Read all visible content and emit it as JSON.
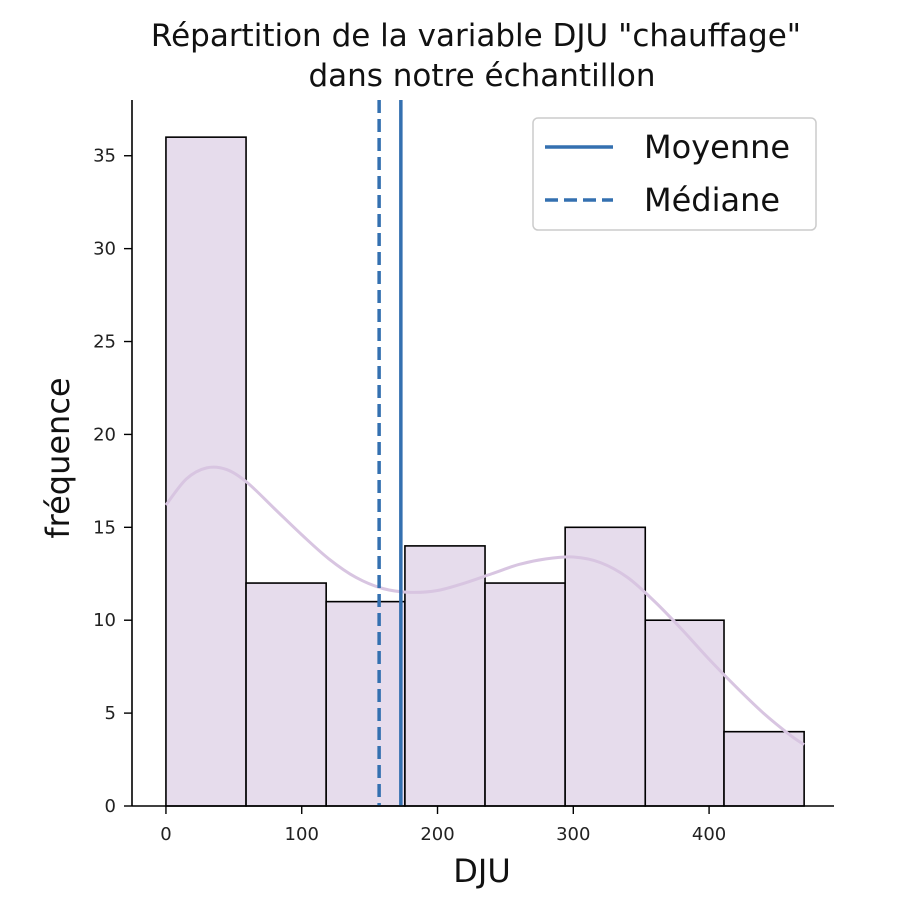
{
  "chart_data": {
    "type": "bar",
    "title_lines": [
      "Répartition de la variable DJU \"chauffage\"",
      "dans notre échantillon"
    ],
    "xlabel": "DJU",
    "ylabel": "fréquence",
    "xlim": [
      -25,
      492
    ],
    "ylim": [
      0,
      38
    ],
    "xticks": [
      0,
      100,
      200,
      300,
      400
    ],
    "yticks": [
      0,
      5,
      10,
      15,
      20,
      25,
      30,
      35
    ],
    "bins": [
      {
        "x0": 0,
        "x1": 59,
        "count": 36
      },
      {
        "x0": 59,
        "x1": 118,
        "count": 12
      },
      {
        "x0": 118,
        "x1": 176,
        "count": 11
      },
      {
        "x0": 176,
        "x1": 235,
        "count": 14
      },
      {
        "x0": 235,
        "x1": 294,
        "count": 12
      },
      {
        "x0": 294,
        "x1": 353,
        "count": 15
      },
      {
        "x0": 353,
        "x1": 411,
        "count": 10
      },
      {
        "x0": 411,
        "x1": 470,
        "count": 4
      }
    ],
    "kde": {
      "x": [
        0,
        15,
        30,
        45,
        60,
        80,
        100,
        120,
        140,
        160,
        180,
        200,
        220,
        240,
        260,
        280,
        300,
        320,
        340,
        360,
        380,
        400,
        420,
        440,
        460,
        470
      ],
      "y": [
        16.2,
        17.6,
        18.2,
        18.1,
        17.4,
        16.0,
        14.6,
        13.3,
        12.3,
        11.7,
        11.5,
        11.6,
        12.0,
        12.5,
        13.0,
        13.3,
        13.4,
        13.1,
        12.3,
        11.0,
        9.5,
        7.9,
        6.4,
        5.0,
        3.8,
        3.3
      ]
    },
    "mean": 173,
    "median": 157,
    "legend": {
      "placement": "upper-right",
      "entries": [
        {
          "label": "Moyenne",
          "style": "solid"
        },
        {
          "label": "Médiane",
          "style": "dashed"
        }
      ]
    },
    "colors": {
      "bar_fill": "#e6dcec",
      "bar_edge": "#000000",
      "kde_line": "#d8c5e1",
      "mean_line": "#3470b0",
      "median_line": "#3470b0"
    },
    "grid": false
  }
}
